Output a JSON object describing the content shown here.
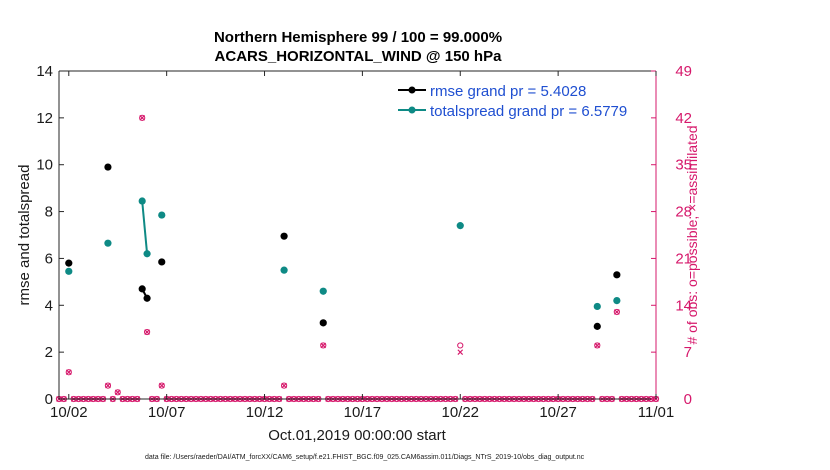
{
  "chart_data": {
    "type": "line",
    "title_line1": "Northern Hemisphere 99 / 100 = 99.000%",
    "title_line2": "ACARS_HORIZONTAL_WIND @ 150 hPa",
    "xlabel": "Oct.01,2019 00:00:00 start",
    "ylabel_left": "rmse and totalspread",
    "ylabel_right": "# of obs: o=possible; ×=assimilated",
    "xlim": [
      1.5,
      32
    ],
    "ylim_left": [
      0,
      14
    ],
    "ylim_right": [
      0,
      49
    ],
    "x_ticks": [
      {
        "value": 2,
        "label": "10/02"
      },
      {
        "value": 7,
        "label": "10/07"
      },
      {
        "value": 12,
        "label": "10/12"
      },
      {
        "value": 17,
        "label": "10/17"
      },
      {
        "value": 22,
        "label": "10/22"
      },
      {
        "value": 27,
        "label": "10/27"
      },
      {
        "value": 32,
        "label": "11/01"
      }
    ],
    "y_ticks_left": [
      "0",
      "2",
      "4",
      "6",
      "8",
      "10",
      "12",
      "14"
    ],
    "y_ticks_right": [
      "0",
      "7",
      "14",
      "21",
      "28",
      "35",
      "42",
      "49"
    ],
    "series": [
      {
        "name": "rmse",
        "legend": "rmse grand pr = 5.4028",
        "color": "#000000",
        "points": [
          {
            "x": 2.0,
            "y": 5.8
          },
          {
            "x": 4.0,
            "y": 9.9
          },
          {
            "x": 5.75,
            "y": 4.7
          },
          {
            "x": 6.0,
            "y": 4.3
          },
          {
            "x": 6.75,
            "y": 5.85
          },
          {
            "x": 13.0,
            "y": 6.95
          },
          {
            "x": 15.0,
            "y": 3.25
          },
          {
            "x": 29.0,
            "y": 3.1
          },
          {
            "x": 30.0,
            "y": 5.3
          }
        ],
        "segments": [
          [
            [
              5.75,
              4.7
            ],
            [
              6.0,
              4.3
            ]
          ]
        ]
      },
      {
        "name": "totalspread",
        "legend": "totalspread grand pr = 6.5779",
        "color": "#0e8a85",
        "points": [
          {
            "x": 2.0,
            "y": 5.45
          },
          {
            "x": 4.0,
            "y": 6.65
          },
          {
            "x": 5.75,
            "y": 8.45
          },
          {
            "x": 6.0,
            "y": 6.2
          },
          {
            "x": 6.75,
            "y": 7.85
          },
          {
            "x": 13.0,
            "y": 5.5
          },
          {
            "x": 15.0,
            "y": 4.6
          },
          {
            "x": 22.0,
            "y": 7.4
          },
          {
            "x": 29.0,
            "y": 3.95
          },
          {
            "x": 30.0,
            "y": 4.2
          }
        ],
        "segments": [
          [
            [
              5.75,
              8.45
            ],
            [
              6.0,
              6.2
            ]
          ]
        ]
      }
    ],
    "obs_counts": {
      "color": "#d6186b",
      "step": 0.25,
      "x_start": 1.5,
      "x_end": 32,
      "nonzero": [
        {
          "x": 2.0,
          "possible": 4,
          "assimilated": 4
        },
        {
          "x": 4.0,
          "possible": 2,
          "assimilated": 2
        },
        {
          "x": 4.5,
          "possible": 1,
          "assimilated": 1
        },
        {
          "x": 5.75,
          "possible": 42,
          "assimilated": 42
        },
        {
          "x": 6.0,
          "possible": 10,
          "assimilated": 10
        },
        {
          "x": 6.75,
          "possible": 2,
          "assimilated": 2
        },
        {
          "x": 13.0,
          "possible": 2,
          "assimilated": 2
        },
        {
          "x": 15.0,
          "possible": 8,
          "assimilated": 8
        },
        {
          "x": 22.0,
          "possible": 8,
          "assimilated": 7
        },
        {
          "x": 29.0,
          "possible": 8,
          "assimilated": 8
        },
        {
          "x": 30.0,
          "possible": 13,
          "assimilated": 13
        }
      ]
    },
    "legend_position": "top-right",
    "footnote": "data file: /Users/raeder/DAI/ATM_forcXX/CAM6_setup/f.e21.FHIST_BGC.f09_025.CAM6assim.011/Diags_NTrS_2019-10/obs_diag_output.nc"
  }
}
